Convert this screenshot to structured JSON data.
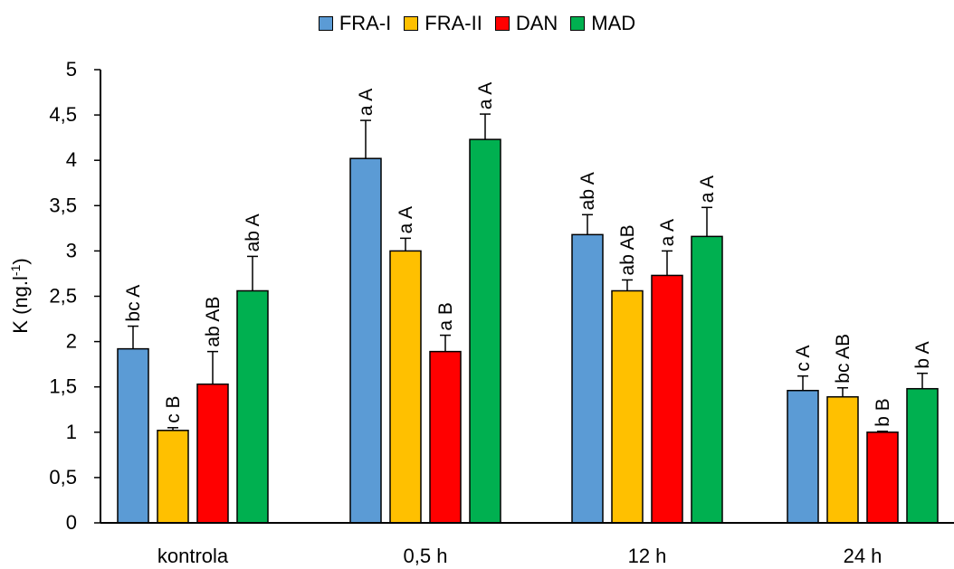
{
  "chart_data": {
    "type": "bar",
    "title": "",
    "xlabel": "",
    "ylabel": "K (ng.l",
    "ylabel_sup": "-1",
    "ylabel_close": ")",
    "ylim": [
      0,
      5
    ],
    "yticks": [
      "0",
      "0,5",
      "1",
      "1,5",
      "2",
      "2,5",
      "3",
      "3,5",
      "4",
      "4,5",
      "5"
    ],
    "grid": false,
    "legend_position": "top-center",
    "categories": [
      "kontrola",
      "0,5 h",
      "12 h",
      "24 h"
    ],
    "series": [
      {
        "name": "FRA-I",
        "color": "#5B9BD5",
        "values": [
          1.92,
          4.02,
          3.18,
          1.46
        ],
        "errors": [
          0.25,
          0.42,
          0.22,
          0.16
        ],
        "labels": [
          "bc A",
          "a A",
          "ab A",
          "c A"
        ]
      },
      {
        "name": "FRA-II",
        "color": "#FFC000",
        "values": [
          1.02,
          3.0,
          2.56,
          1.39
        ],
        "errors": [
          0.03,
          0.14,
          0.12,
          0.1
        ],
        "labels": [
          "c B",
          "a A",
          "ab AB",
          "bc AB"
        ]
      },
      {
        "name": "DAN",
        "color": "#FF0000",
        "values": [
          1.53,
          1.89,
          2.73,
          1.0
        ],
        "errors": [
          0.36,
          0.18,
          0.27,
          0.01
        ],
        "labels": [
          "ab AB",
          "a B",
          "a A",
          "b B"
        ]
      },
      {
        "name": "MAD",
        "color": "#00B050",
        "values": [
          2.56,
          4.23,
          3.16,
          1.48
        ],
        "errors": [
          0.38,
          0.28,
          0.32,
          0.17
        ],
        "labels": [
          "ab A",
          "a A",
          "a A",
          "b A"
        ]
      }
    ]
  }
}
